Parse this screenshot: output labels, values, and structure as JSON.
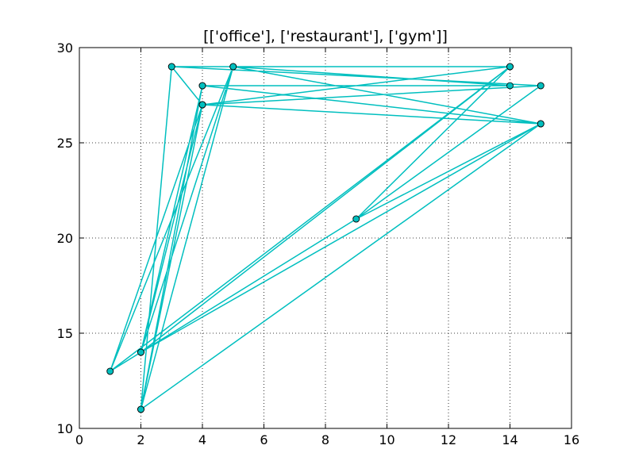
{
  "chart_data": {
    "type": "line",
    "title": "[['office'], ['restaurant'], ['gym']]",
    "xlabel": "",
    "ylabel": "",
    "xlim": [
      0,
      16
    ],
    "ylim": [
      10,
      30
    ],
    "xticks": [
      0,
      2,
      4,
      6,
      8,
      10,
      12,
      14,
      16
    ],
    "yticks": [
      10,
      15,
      20,
      25,
      30
    ],
    "grid": true,
    "grid_style": "dotted",
    "marker": "circle",
    "line_color": "#00bfbf",
    "marker_face_color": "#00bfbf",
    "marker_edge_color": "#000000",
    "series": [
      {
        "x": [
          2,
          4,
          15,
          4,
          14,
          1,
          5,
          14,
          4,
          2,
          15,
          4,
          3,
          15,
          3,
          2,
          5,
          15,
          9,
          1,
          4,
          3,
          14,
          2,
          4,
          15,
          2,
          4,
          15,
          9,
          14,
          5,
          2,
          4
        ],
        "y": [
          11,
          28,
          26,
          27,
          29,
          13,
          29,
          28,
          28,
          14,
          26,
          27,
          29,
          28,
          29,
          11,
          29,
          26,
          21,
          13,
          27,
          29,
          29,
          14,
          28,
          26,
          11,
          27,
          28,
          21,
          29,
          29,
          14,
          27
        ]
      }
    ]
  }
}
